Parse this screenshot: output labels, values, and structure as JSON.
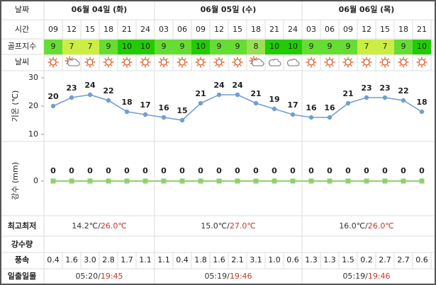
{
  "header": {
    "date_label": "날짜",
    "time_label": "시간",
    "golf_label": "골프지수",
    "weather_label": "날씨"
  },
  "days": [
    {
      "date": "06월 04일 (화)",
      "low": "14.2℃/",
      "high": "26.0℃",
      "sunrise": "05:20/",
      "sunset": "19:45"
    },
    {
      "date": "06월 05일 (수)",
      "low": "15.0℃/",
      "high": "27.0℃",
      "sunrise": "05:19/",
      "sunset": "19:46"
    },
    {
      "date": "06월 06일 (목)",
      "low": "16.0℃/",
      "high": "26.0℃",
      "sunrise": "05:19/",
      "sunset": "19:46"
    }
  ],
  "table": {
    "times": [
      "09",
      "12",
      "15",
      "18",
      "21",
      "24",
      "03",
      "06",
      "09",
      "12",
      "15",
      "18",
      "21",
      "24",
      "03",
      "06",
      "09",
      "12",
      "15",
      "18",
      "21"
    ],
    "golf": [
      9,
      7,
      7,
      9,
      10,
      10,
      9,
      9,
      10,
      9,
      9,
      8,
      10,
      10,
      9,
      9,
      9,
      7,
      7,
      9,
      10
    ],
    "wind": [
      "0.4",
      "1.6",
      "3.0",
      "2.8",
      "1.7",
      "1.1",
      "1.1",
      "0.4",
      "1.8",
      "1.6",
      "2.1",
      "3.1",
      "1.0",
      "0.6",
      "1.3",
      "1.3",
      "1.5",
      "0.2",
      "2.7",
      "2.7",
      "0.6"
    ]
  },
  "rows": {
    "minmax": "최고최저",
    "rain": "강수량",
    "wind": "풍속",
    "sun": "일출일몰"
  },
  "chart_data": [
    {
      "type": "line",
      "y_label": "기온 (℃)",
      "values": [
        20,
        23,
        24,
        22,
        18,
        17,
        16,
        15,
        21,
        24,
        24,
        21,
        19,
        17,
        16,
        16,
        21,
        23,
        23,
        22,
        18
      ],
      "color": "#6f9fd2",
      "ylim": [
        10,
        30
      ],
      "yticks": [
        10,
        20,
        30
      ]
    },
    {
      "type": "line",
      "y_label": "강수 (mm)",
      "values": [
        0,
        0,
        0,
        0,
        0,
        0,
        0,
        0,
        0,
        0,
        0,
        0,
        0,
        0,
        0,
        0,
        0,
        0,
        0,
        0,
        0
      ],
      "color": "#8fd16a",
      "ylim": [
        -1,
        1
      ],
      "yticks": [
        0
      ]
    }
  ]
}
